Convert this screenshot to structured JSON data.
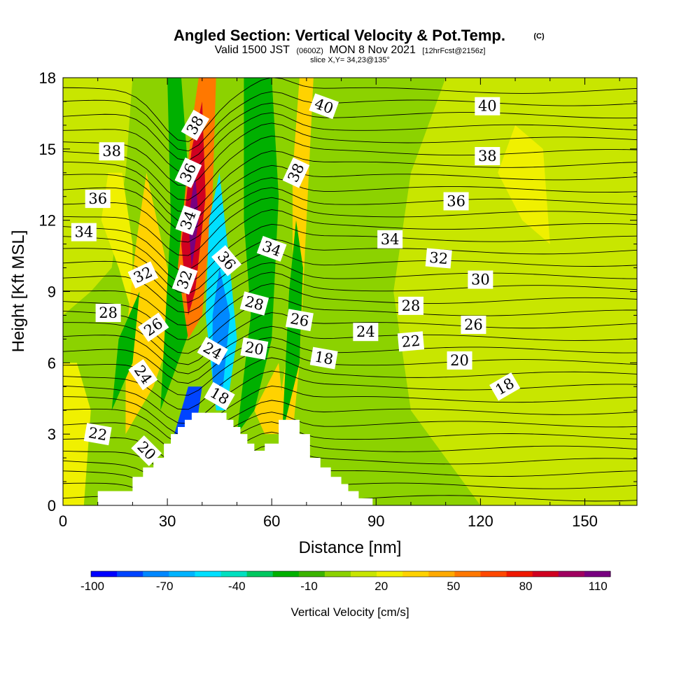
{
  "header": {
    "title": "Angled Section: Vertical Velocity & Pot.Temp.",
    "copyright": "(C)",
    "valid_prefix": "Valid 1500 JST",
    "valid_zulu": "(0600Z)",
    "valid_date": "MON 8 Nov 2021",
    "forecast": "[12hrFcst@2156z]",
    "slice": "slice X,Y= 34,23@135°"
  },
  "chart_data": {
    "type": "heatmap",
    "xlabel": "Distance [nm]",
    "ylabel": "Height [Kft MSL]",
    "xlim": [
      0,
      165
    ],
    "ylim": [
      0,
      18
    ],
    "x_ticks": [
      0,
      30,
      60,
      90,
      120,
      150
    ],
    "y_ticks": [
      0,
      3,
      6,
      9,
      12,
      15,
      18
    ],
    "colorbar": {
      "label": "Vertical Velocity [cm/s]",
      "tick_labels": [
        "-100",
        "-70",
        "-40",
        "-10",
        "20",
        "50",
        "80",
        "110"
      ],
      "colors": [
        "#0000ff",
        "#0044ff",
        "#0088ff",
        "#00b4ff",
        "#00e0ff",
        "#00e0c0",
        "#00c860",
        "#00b000",
        "#3cb400",
        "#8cd200",
        "#c8e600",
        "#f0f000",
        "#ffd200",
        "#ffaa00",
        "#ff7800",
        "#ff4800",
        "#f01800",
        "#d00020",
        "#a00060",
        "#780080"
      ]
    },
    "terrain_profile": [
      [
        0,
        0
      ],
      [
        10,
        0
      ],
      [
        10,
        0.6
      ],
      [
        20,
        0.6
      ],
      [
        20,
        1.2
      ],
      [
        23,
        1.2
      ],
      [
        23,
        1.6
      ],
      [
        26,
        1.6
      ],
      [
        26,
        2
      ],
      [
        29,
        2
      ],
      [
        29,
        2.6
      ],
      [
        31,
        2.6
      ],
      [
        31,
        3
      ],
      [
        33,
        3
      ],
      [
        33,
        3.3
      ],
      [
        35,
        3.3
      ],
      [
        35,
        3.6
      ],
      [
        37,
        3.6
      ],
      [
        37,
        3.9
      ],
      [
        47,
        3.9
      ],
      [
        47,
        3.6
      ],
      [
        49,
        3.6
      ],
      [
        49,
        3.3
      ],
      [
        51,
        3.3
      ],
      [
        51,
        3
      ],
      [
        53,
        3
      ],
      [
        53,
        2.6
      ],
      [
        55,
        2.6
      ],
      [
        55,
        2.3
      ],
      [
        58,
        2.3
      ],
      [
        58,
        2.6
      ],
      [
        62,
        2.6
      ],
      [
        62,
        3.6
      ],
      [
        68,
        3.6
      ],
      [
        68,
        3
      ],
      [
        71,
        3
      ],
      [
        71,
        2
      ],
      [
        74,
        2
      ],
      [
        74,
        1.6
      ],
      [
        77,
        1.6
      ],
      [
        77,
        1.2
      ],
      [
        80,
        1.2
      ],
      [
        80,
        0.9
      ],
      [
        82,
        0.9
      ],
      [
        82,
        0.6
      ],
      [
        85,
        0.6
      ],
      [
        85,
        0.3
      ],
      [
        89,
        0.3
      ],
      [
        89,
        0
      ],
      [
        165,
        0
      ]
    ],
    "contour_labels": [
      {
        "text": "38",
        "x": 38,
        "y": 16.0,
        "rot": 60
      },
      {
        "text": "36",
        "x": 36,
        "y": 14.0,
        "rot": 65
      },
      {
        "text": "34",
        "x": 36,
        "y": 12.0,
        "rot": 70
      },
      {
        "text": "32",
        "x": 35,
        "y": 9.5,
        "rot": 70
      },
      {
        "text": "36",
        "x": 47,
        "y": 10.3,
        "rot": -50
      },
      {
        "text": "34",
        "x": 60,
        "y": 10.8,
        "rot": -20
      },
      {
        "text": "38",
        "x": 67,
        "y": 14.0,
        "rot": 65
      },
      {
        "text": "40",
        "x": 75,
        "y": 16.8,
        "rot": -20
      },
      {
        "text": "40",
        "x": 122,
        "y": 16.8,
        "rot": 0
      },
      {
        "text": "38",
        "x": 14,
        "y": 14.9,
        "rot": 0
      },
      {
        "text": "38",
        "x": 122,
        "y": 14.7,
        "rot": 0
      },
      {
        "text": "36",
        "x": 10,
        "y": 12.9,
        "rot": 0
      },
      {
        "text": "36",
        "x": 113,
        "y": 12.8,
        "rot": 0
      },
      {
        "text": "34",
        "x": 6,
        "y": 11.5,
        "rot": 0
      },
      {
        "text": "34",
        "x": 94,
        "y": 11.2,
        "rot": 0
      },
      {
        "text": "32",
        "x": 23,
        "y": 9.7,
        "rot": 25
      },
      {
        "text": "32",
        "x": 108,
        "y": 10.4,
        "rot": -5
      },
      {
        "text": "30",
        "x": 120,
        "y": 9.5,
        "rot": 0
      },
      {
        "text": "28",
        "x": 13,
        "y": 8.1,
        "rot": 0
      },
      {
        "text": "28",
        "x": 55,
        "y": 8.5,
        "rot": -15
      },
      {
        "text": "28",
        "x": 100,
        "y": 8.4,
        "rot": 0
      },
      {
        "text": "26",
        "x": 26,
        "y": 7.5,
        "rot": 35
      },
      {
        "text": "26",
        "x": 68,
        "y": 7.8,
        "rot": -10
      },
      {
        "text": "26",
        "x": 118,
        "y": 7.6,
        "rot": 0
      },
      {
        "text": "24",
        "x": 87,
        "y": 7.3,
        "rot": 0
      },
      {
        "text": "22",
        "x": 100,
        "y": 6.9,
        "rot": 5
      },
      {
        "text": "24",
        "x": 43,
        "y": 6.5,
        "rot": -30
      },
      {
        "text": "24",
        "x": 23,
        "y": 5.5,
        "rot": -55
      },
      {
        "text": "20",
        "x": 55,
        "y": 6.6,
        "rot": -10
      },
      {
        "text": "18",
        "x": 75,
        "y": 6.2,
        "rot": -10
      },
      {
        "text": "20",
        "x": 114,
        "y": 6.1,
        "rot": 0
      },
      {
        "text": "18",
        "x": 127,
        "y": 5.0,
        "rot": 30
      },
      {
        "text": "18",
        "x": 45,
        "y": 4.6,
        "rot": -30
      },
      {
        "text": "22",
        "x": 10,
        "y": 3.0,
        "rot": -10
      },
      {
        "text": "20",
        "x": 24,
        "y": 2.3,
        "rot": -45
      }
    ]
  }
}
